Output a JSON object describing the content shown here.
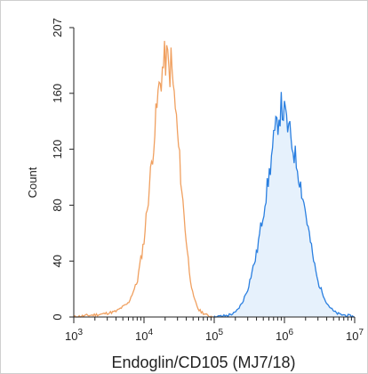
{
  "chart_data": {
    "type": "area",
    "title": "",
    "xlabel": "Endoglin/CD105 (MJ7/18)",
    "ylabel": "Count",
    "x_scale": "log",
    "xlim": [
      1000,
      10000000
    ],
    "ylim": [
      0,
      207
    ],
    "x_ticks": [
      {
        "value": 1000,
        "base": "10",
        "exp": "3"
      },
      {
        "value": 10000,
        "base": "10",
        "exp": "4"
      },
      {
        "value": 100000,
        "base": "10",
        "exp": "5"
      },
      {
        "value": 1000000,
        "base": "10",
        "exp": "6"
      },
      {
        "value": 10000000,
        "base": "10",
        "exp": "7"
      }
    ],
    "y_ticks": [
      "0",
      "40",
      "80",
      "120",
      "160",
      "207"
    ],
    "y_tick_values": [
      0,
      40,
      80,
      120,
      160,
      207
    ],
    "grid": false,
    "legend": "none",
    "series": [
      {
        "color": "#f0a060",
        "fill": "none",
        "x": [
          1000,
          1500,
          2500,
          4000,
          6000,
          8000,
          10000,
          12000,
          14000,
          16000,
          18000,
          20000,
          22000,
          23000,
          24000,
          26000,
          28000,
          30000,
          33000,
          36000,
          40000,
          45000,
          50000,
          60000,
          80000,
          100000
        ],
        "y": [
          0,
          1,
          2,
          4,
          10,
          25,
          55,
          95,
          130,
          160,
          175,
          185,
          183,
          170,
          185,
          165,
          150,
          130,
          105,
          80,
          55,
          30,
          15,
          5,
          1,
          0
        ]
      },
      {
        "color": "#2a7fe0",
        "fill": "#e6f1fc",
        "x": [
          100000,
          150000,
          200000,
          250000,
          300000,
          400000,
          500000,
          600000,
          700000,
          800000,
          900000,
          1000000,
          1200000,
          1500000,
          2000000,
          2500000,
          3000000,
          4000000,
          5000000,
          6000000,
          8000000,
          10000000
        ],
        "y": [
          0,
          1,
          3,
          10,
          20,
          45,
          75,
          100,
          125,
          140,
          150,
          145,
          130,
          110,
          75,
          45,
          25,
          10,
          4,
          2,
          1,
          0
        ]
      }
    ]
  }
}
